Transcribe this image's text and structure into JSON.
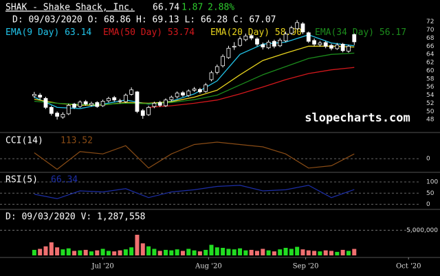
{
  "chart_data": [
    {
      "type": "candlestick",
      "title": "SHAK - Shake Shack, Inc.",
      "price": "66.74",
      "change": "1.87",
      "change_pct": "2.88%",
      "info": "D: 09/03/2020 O: 68.86 H: 69.13 L: 66.28 C: 67.07",
      "watermark": "slopecharts.com",
      "open": [
        53.8,
        54.0,
        53.2,
        51.0,
        49.6,
        48.6,
        49.4,
        51.8,
        51.2,
        52.4,
        51.6,
        52.2,
        51.4,
        52.6,
        53.4,
        52.6,
        52.4,
        54.2,
        54.8,
        50.2,
        49.2,
        51.2,
        52.2,
        51.4,
        52.9,
        53.6,
        54.6,
        53.9,
        55.2,
        55.4,
        54.9,
        57.8,
        59.6,
        61.2,
        63.2,
        65.8,
        66.2,
        67.6,
        68.6,
        67.8,
        66.4,
        65.6,
        67.2,
        66.1,
        67.3,
        69.2,
        70.3,
        71.5,
        69.3,
        67.4,
        66.4,
        66.9,
        66.2,
        65.4,
        66.5,
        64.8,
        68.86
      ],
      "high": [
        54.8,
        54.5,
        53.6,
        51.4,
        50.0,
        49.8,
        51.9,
        52.1,
        52.7,
        52.8,
        52.4,
        52.5,
        52.9,
        53.6,
        53.8,
        53.1,
        54.4,
        55.9,
        55.0,
        50.6,
        51.4,
        52.4,
        52.6,
        53.2,
        53.9,
        54.9,
        55.0,
        55.4,
        56.0,
        55.8,
        57.0,
        60.0,
        61.5,
        64.0,
        66.1,
        67.0,
        68.4,
        69.1,
        69.0,
        68.2,
        66.9,
        67.5,
        67.6,
        68.0,
        69.6,
        71.0,
        72.4,
        71.9,
        69.6,
        67.9,
        67.3,
        67.3,
        66.6,
        66.8,
        66.8,
        66.4,
        69.13
      ],
      "low": [
        53.3,
        52.9,
        50.6,
        49.0,
        48.0,
        48.2,
        49.1,
        50.6,
        50.9,
        51.4,
        51.2,
        50.9,
        51.1,
        52.2,
        52.4,
        52.0,
        52.1,
        53.9,
        49.6,
        48.2,
        48.9,
        50.8,
        51.1,
        51.1,
        52.5,
        53.2,
        53.6,
        53.6,
        54.8,
        54.4,
        54.6,
        57.4,
        59.1,
        60.8,
        62.9,
        65.1,
        65.9,
        67.2,
        67.5,
        66.0,
        65.2,
        65.3,
        65.5,
        65.8,
        67.0,
        68.8,
        70.0,
        69.0,
        66.8,
        66.0,
        65.9,
        65.5,
        65.0,
        65.1,
        64.5,
        64.4,
        66.28
      ],
      "close": [
        54.2,
        53.5,
        51.0,
        49.5,
        48.8,
        49.3,
        51.5,
        51.0,
        52.3,
        51.8,
        52.0,
        51.2,
        52.5,
        53.2,
        52.8,
        52.5,
        54.0,
        55.3,
        50.0,
        49.0,
        51.0,
        52.0,
        51.5,
        52.8,
        53.5,
        54.5,
        54.0,
        55.0,
        55.5,
        54.8,
        56.5,
        59.5,
        61.0,
        63.5,
        65.5,
        66.0,
        67.8,
        68.5,
        68.0,
        66.5,
        65.8,
        67.0,
        66.0,
        67.5,
        69.0,
        70.5,
        71.8,
        69.5,
        67.2,
        66.5,
        66.8,
        66.0,
        65.5,
        66.3,
        64.9,
        66.0,
        67.07
      ],
      "xlim": [
        -6,
        68
      ],
      "xticks": [
        {
          "value": 12,
          "label": "Jul '20"
        },
        {
          "value": 30.5,
          "label": "Aug '20"
        },
        {
          "value": 47.5,
          "label": "Sep '20"
        },
        {
          "value": 65.5,
          "label": "Oct '20"
        }
      ],
      "ylim": [
        45,
        77
      ],
      "yticks": [
        48,
        50,
        52,
        54,
        56,
        58,
        60,
        62,
        64,
        66,
        68,
        70,
        72
      ],
      "series": [
        {
          "name": "EMA(9 Day)",
          "reading": "63.14",
          "color": "#22c4ea",
          "x": [
            0,
            4,
            8,
            12,
            16,
            20,
            24,
            28,
            32,
            36,
            40,
            44,
            48,
            52,
            56
          ],
          "values": [
            53.5,
            51.0,
            50.7,
            51.8,
            52.8,
            51.8,
            52.5,
            54.3,
            57.5,
            64.0,
            66.5,
            67.0,
            68.8,
            66.8,
            66.1
          ]
        },
        {
          "name": "EMA(50 Day)",
          "reading": "53.74",
          "color": "#d4181c",
          "x": [
            20,
            24,
            28,
            32,
            36,
            40,
            44,
            48,
            52,
            56
          ],
          "values": [
            51.0,
            51.4,
            52.0,
            52.8,
            54.3,
            56.0,
            57.8,
            59.3,
            60.2,
            60.8
          ]
        },
        {
          "name": "EMA(20 Day)",
          "reading": "58.90",
          "color": "#e8d41e",
          "x": [
            0,
            4,
            8,
            12,
            16,
            20,
            24,
            28,
            32,
            36,
            40,
            44,
            48,
            52,
            56
          ],
          "values": [
            53.0,
            52.0,
            51.5,
            51.6,
            52.2,
            52.0,
            52.4,
            53.5,
            55.2,
            59.0,
            62.5,
            64.3,
            66.0,
            66.0,
            65.8
          ]
        },
        {
          "name": "EMA(34 Day)",
          "reading": "56.17",
          "color": "#1c8c1c",
          "x": [
            0,
            4,
            8,
            12,
            16,
            20,
            24,
            28,
            32,
            36,
            40,
            44,
            48,
            52,
            56
          ],
          "values": [
            52.5,
            52.0,
            51.7,
            51.7,
            52.0,
            51.9,
            52.2,
            52.9,
            54.0,
            56.5,
            59.0,
            61.0,
            63.0,
            64.0,
            64.3
          ]
        }
      ]
    },
    {
      "type": "line",
      "title": "CCI(14)",
      "reading": "113.52",
      "color": "#8b4d16",
      "x": [
        0,
        4,
        8,
        12,
        16,
        20,
        24,
        28,
        32,
        36,
        40,
        44,
        48,
        52,
        56
      ],
      "values": [
        50,
        -90,
        60,
        40,
        110,
        -80,
        40,
        120,
        140,
        120,
        100,
        40,
        -80,
        -60,
        40
      ],
      "ylim": [
        -110,
        210
      ],
      "yticks": [
        0
      ]
    },
    {
      "type": "line",
      "title": "RSI(5)",
      "reading": "66.34",
      "color": "#1d2fa8",
      "x": [
        0,
        4,
        8,
        12,
        16,
        20,
        24,
        28,
        32,
        36,
        40,
        44,
        48,
        52,
        56
      ],
      "values": [
        45,
        25,
        60,
        55,
        70,
        30,
        55,
        65,
        80,
        85,
        60,
        65,
        85,
        30,
        66
      ],
      "ylim": [
        -20,
        140
      ],
      "yticks": [
        100,
        50,
        0
      ]
    },
    {
      "type": "bar",
      "title": "D: 09/03/2020 V: 1,287,558",
      "up_color": "#22dd22",
      "down_color": "#f07070",
      "values": [
        1100000,
        1300000,
        1800000,
        2600000,
        1600000,
        1200000,
        1400000,
        900000,
        1000000,
        1100000,
        800000,
        1000000,
        1300000,
        900000,
        800000,
        1000000,
        1200000,
        1600000,
        4100000,
        2400000,
        1800000,
        1300000,
        900000,
        1100000,
        1000000,
        1200000,
        900000,
        1300000,
        1000000,
        800000,
        1100000,
        2100000,
        1600000,
        1500000,
        1300000,
        1200000,
        1400000,
        1000000,
        1100000,
        900000,
        1300000,
        1000000,
        800000,
        1200000,
        1500000,
        1300000,
        1700000,
        1200000,
        1000000,
        900000,
        800000,
        1000000,
        900000,
        700000,
        1100000,
        900000,
        1287558
      ],
      "ylim": [
        0,
        9000000
      ],
      "yticks": [
        {
          "value": 5000000,
          "label": "5,000,000"
        }
      ]
    }
  ]
}
